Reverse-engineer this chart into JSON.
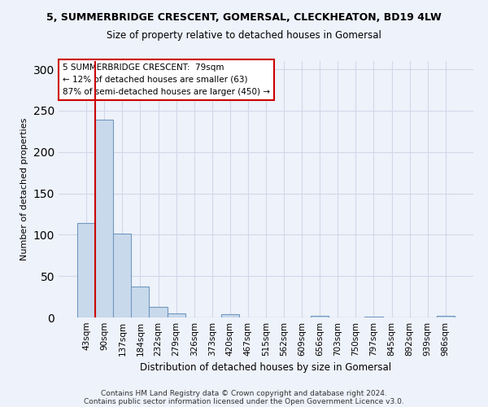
{
  "title1": "5, SUMMERBRIDGE CRESCENT, GOMERSAL, CLECKHEATON, BD19 4LW",
  "title2": "Size of property relative to detached houses in Gomersal",
  "xlabel": "Distribution of detached houses by size in Gomersal",
  "ylabel": "Number of detached properties",
  "bar_color": "#c9d9ec",
  "bar_edge_color": "#7098c0",
  "vline_color": "#cc0000",
  "annotation_text": "5 SUMMERBRIDGE CRESCENT:  79sqm\n← 12% of detached houses are smaller (63)\n87% of semi-detached houses are larger (450) →",
  "annotation_box_color": "#ffffff",
  "annotation_box_edge": "#cc0000",
  "categories": [
    "43sqm",
    "90sqm",
    "137sqm",
    "184sqm",
    "232sqm",
    "279sqm",
    "326sqm",
    "373sqm",
    "420sqm",
    "467sqm",
    "515sqm",
    "562sqm",
    "609sqm",
    "656sqm",
    "703sqm",
    "750sqm",
    "797sqm",
    "845sqm",
    "892sqm",
    "939sqm",
    "986sqm"
  ],
  "values": [
    114,
    239,
    101,
    37,
    13,
    5,
    0,
    0,
    4,
    0,
    0,
    0,
    0,
    2,
    0,
    0,
    1,
    0,
    0,
    0,
    2
  ],
  "ylim": [
    0,
    310
  ],
  "yticks": [
    0,
    50,
    100,
    150,
    200,
    250,
    300
  ],
  "grid_color": "#d0d8e8",
  "footnote1": "Contains HM Land Registry data © Crown copyright and database right 2024.",
  "footnote2": "Contains public sector information licensed under the Open Government Licence v3.0.",
  "bg_color": "#eef2fa"
}
